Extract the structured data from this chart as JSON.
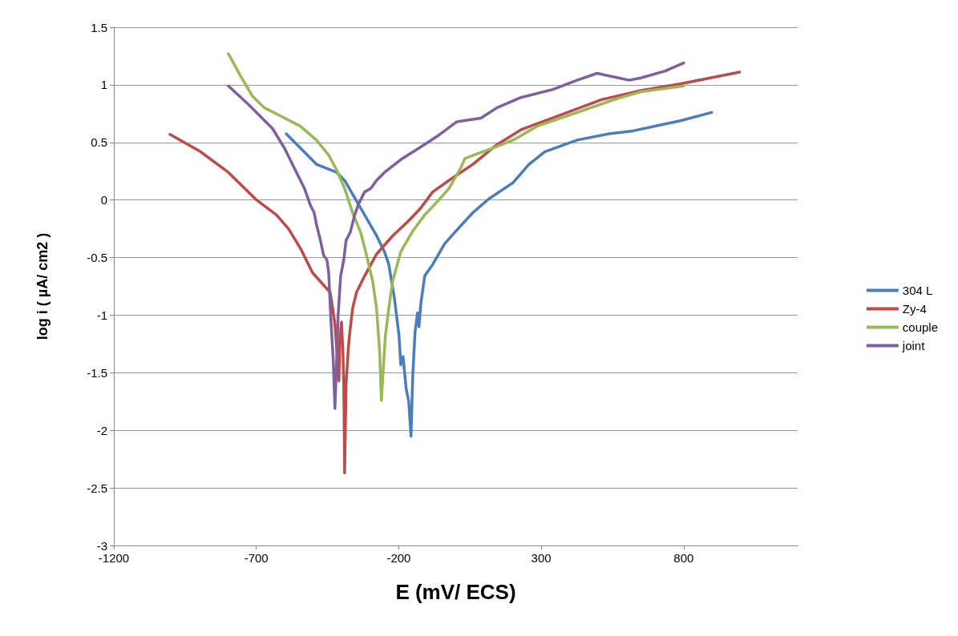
{
  "chart_data": {
    "type": "line",
    "xlabel": "E (mV/ ECS)",
    "ylabel": "log i ( µA/ cm2 )",
    "xlim": [
      -1200,
      1200
    ],
    "xticks": [
      -1200,
      -700,
      -200,
      300,
      800
    ],
    "ylim": [
      -3,
      1.5
    ],
    "yticks": [
      -3,
      -2.5,
      -2,
      -1.5,
      -1,
      -0.5,
      0,
      0.5,
      1,
      1.5
    ],
    "grid": "y",
    "legend": "right",
    "marker": "none",
    "line_style": "solid",
    "series": [
      {
        "name": "304 L",
        "color": "#4a7ebb",
        "x": [
          -595,
          -489,
          -418,
          -390,
          -334,
          -278,
          -250,
          -235,
          -216,
          -199,
          -193,
          -185,
          -174,
          -165,
          -157,
          -151,
          -143,
          -134,
          -129,
          -123,
          -109,
          -81,
          -39,
          4,
          60,
          116,
          201,
          257,
          313,
          426,
          538,
          622,
          791,
          898
        ],
        "values": [
          0.575,
          0.31,
          0.24,
          0.17,
          -0.07,
          -0.31,
          -0.45,
          -0.56,
          -0.84,
          -1.18,
          -1.43,
          -1.36,
          -1.64,
          -1.75,
          -2.05,
          -1.53,
          -1.15,
          -0.98,
          -1.1,
          -0.91,
          -0.66,
          -0.56,
          -0.38,
          -0.26,
          -0.11,
          0.01,
          0.15,
          0.31,
          0.42,
          0.52,
          0.575,
          0.6,
          0.69,
          0.76
        ]
      },
      {
        "name": "Zy-4",
        "color": "#be4b48",
        "x": [
          -1003,
          -896,
          -798,
          -699,
          -629,
          -587,
          -545,
          -503,
          -460,
          -441,
          -432,
          -424,
          -410,
          -407,
          -401,
          -396,
          -393,
          -390,
          -385,
          -376,
          -370,
          -362,
          -348,
          -320,
          -278,
          -221,
          -165,
          -123,
          -81,
          -24,
          60,
          144,
          229,
          369,
          510,
          650,
          791,
          996
        ],
        "values": [
          0.57,
          0.42,
          0.24,
          0.0,
          -0.13,
          -0.25,
          -0.42,
          -0.63,
          -0.75,
          -0.8,
          -0.94,
          -1.08,
          -1.57,
          -1.22,
          -1.06,
          -1.32,
          -1.6,
          -2.37,
          -1.6,
          -1.25,
          -1.11,
          -0.94,
          -0.8,
          -0.66,
          -0.47,
          -0.31,
          -0.18,
          -0.07,
          0.07,
          0.17,
          0.31,
          0.48,
          0.61,
          0.74,
          0.87,
          0.95,
          1.01,
          1.11
        ]
      },
      {
        "name": "couple",
        "color": "#98b954",
        "x": [
          -798,
          -756,
          -713,
          -671,
          -615,
          -545,
          -489,
          -446,
          -418,
          -390,
          -362,
          -334,
          -312,
          -292,
          -278,
          -267,
          -261,
          -256,
          -247,
          -235,
          -221,
          -193,
          -151,
          -109,
          -67,
          -24,
          18,
          32,
          74,
          130,
          201,
          285,
          426,
          566,
          650,
          800
        ],
        "values": [
          1.27,
          1.08,
          0.9,
          0.8,
          0.73,
          0.64,
          0.52,
          0.39,
          0.26,
          0.1,
          -0.11,
          -0.28,
          -0.49,
          -0.7,
          -0.94,
          -1.32,
          -1.74,
          -1.53,
          -1.18,
          -0.94,
          -0.7,
          -0.45,
          -0.27,
          -0.13,
          -0.02,
          0.1,
          0.28,
          0.36,
          0.4,
          0.45,
          0.52,
          0.64,
          0.76,
          0.88,
          0.94,
          0.99
        ]
      },
      {
        "name": "joint",
        "color": "#7d60a0",
        "x": [
          -798,
          -728,
          -643,
          -601,
          -559,
          -531,
          -511,
          -497,
          -489,
          -475,
          -464,
          -452,
          -446,
          -438,
          -430,
          -424,
          -418,
          -413,
          -404,
          -393,
          -385,
          -370,
          -356,
          -342,
          -320,
          -298,
          -278,
          -250,
          -193,
          -123,
          -67,
          4,
          88,
          144,
          229,
          341,
          426,
          496,
          552,
          608,
          650,
          735,
          800
        ],
        "values": [
          0.99,
          0.83,
          0.62,
          0.45,
          0.24,
          0.1,
          -0.04,
          -0.11,
          -0.21,
          -0.35,
          -0.48,
          -0.52,
          -0.63,
          -1.05,
          -1.39,
          -1.81,
          -1.39,
          -1.01,
          -0.66,
          -0.52,
          -0.35,
          -0.28,
          -0.14,
          -0.04,
          0.07,
          0.1,
          0.17,
          0.24,
          0.35,
          0.46,
          0.55,
          0.68,
          0.71,
          0.8,
          0.89,
          0.96,
          1.04,
          1.1,
          1.07,
          1.04,
          1.06,
          1.12,
          1.19
        ]
      }
    ]
  }
}
